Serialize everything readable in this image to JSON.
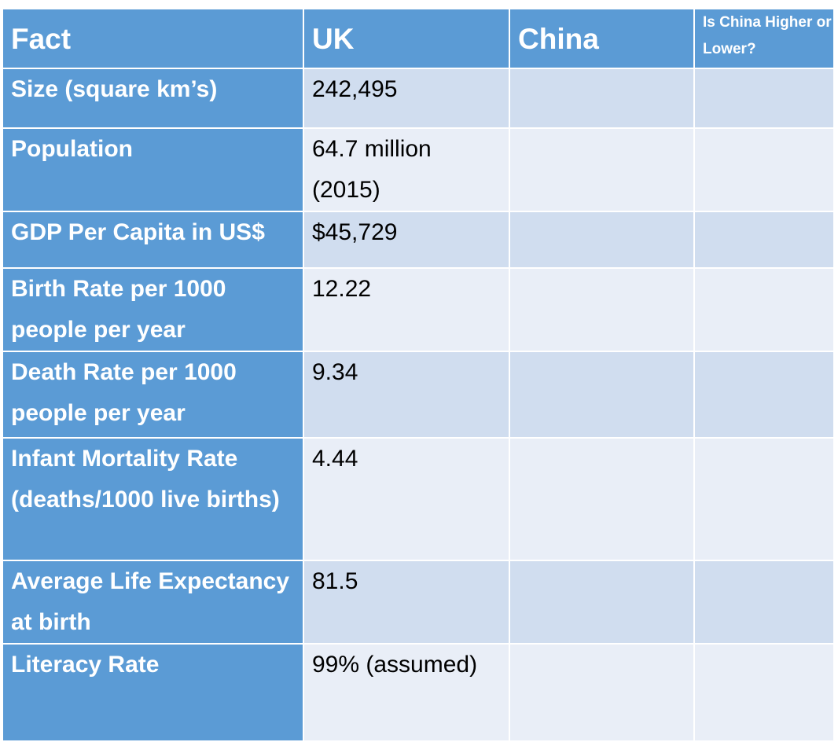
{
  "headers": {
    "fact": "Fact",
    "uk": "UK",
    "china": "China",
    "compare": "Is China  Higher or Lower?"
  },
  "rows": [
    {
      "fact": "Size (square km’s)",
      "uk": "242,495",
      "china": "",
      "compare": ""
    },
    {
      "fact": "Population",
      "uk": "64.7 million (2015)",
      "china": "",
      "compare": ""
    },
    {
      "fact": "GDP Per Capita in US$",
      "uk": "$45,729",
      "china": "",
      "compare": ""
    },
    {
      "fact": "Birth Rate per 1000 people per year",
      "uk": "12.22",
      "china": "",
      "compare": ""
    },
    {
      "fact": "Death Rate per 1000 people per year",
      "uk": "9.34",
      "china": "",
      "compare": ""
    },
    {
      "fact": "Infant Mortality Rate (deaths/1000 live births)",
      "uk": "4.44",
      "china": "",
      "compare": ""
    },
    {
      "fact": "Average Life Expectancy at birth",
      "uk": "81.5",
      "china": "",
      "compare": ""
    },
    {
      "fact": "Literacy Rate",
      "uk": "99% (assumed)",
      "china": "",
      "compare": ""
    }
  ],
  "colors": {
    "header_blue": "#5b9bd5",
    "row_dark": "#d0ddef",
    "row_light": "#e9eef7"
  }
}
